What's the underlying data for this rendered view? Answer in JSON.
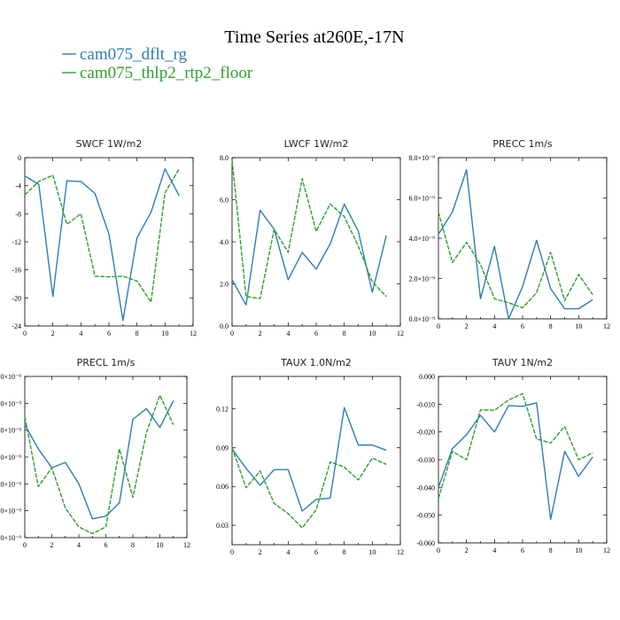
{
  "figure": {
    "title": "Time Series at260E,-17N",
    "legend": [
      {
        "label": "cam075_dflt_rg",
        "color": "#2e7db4",
        "dash": "solid"
      },
      {
        "label": "cam075_thlp2_rtp2_floor",
        "color": "#2ca02c",
        "dash": "dashed"
      }
    ]
  },
  "chart_data": [
    {
      "type": "line",
      "title": "SWCF   1W/m2",
      "x": [
        0,
        1,
        2,
        3,
        4,
        5,
        6,
        7,
        8,
        9,
        10,
        11
      ],
      "xlim": [
        0,
        12
      ],
      "xticks": [
        0,
        2,
        4,
        6,
        8,
        10,
        12
      ],
      "xtick_labels": [
        "0",
        "2",
        "4",
        "6",
        "8",
        "10",
        "12"
      ],
      "ylim": [
        -24,
        0
      ],
      "yticks": [
        -24,
        -20,
        -16,
        -12,
        -8,
        -4,
        0
      ],
      "ytick_labels": [
        "-24",
        "-20",
        "-16",
        "-12",
        "-8",
        "-4",
        "0"
      ],
      "series": [
        {
          "name": "cam075_dflt_rg",
          "values": [
            -2.6,
            -3.8,
            -19.8,
            -3.3,
            -3.4,
            -5.1,
            -10.9,
            -23.2,
            -11.4,
            -7.8,
            -1.6,
            -5.4
          ]
        },
        {
          "name": "cam075_thlp2_rtp2_floor",
          "values": [
            -5.3,
            -3.4,
            -2.5,
            -9.5,
            -8.0,
            -16.9,
            -17.0,
            -16.9,
            -17.6,
            -20.6,
            -5.0,
            -1.6
          ]
        }
      ]
    },
    {
      "type": "line",
      "title": "LWCF   1W/m2",
      "x": [
        0,
        1,
        2,
        3,
        4,
        5,
        6,
        7,
        8,
        9,
        10,
        11
      ],
      "xlim": [
        0,
        12
      ],
      "xticks": [
        0,
        2,
        4,
        6,
        8,
        10,
        12
      ],
      "xtick_labels": [
        "0",
        "2",
        "4",
        "6",
        "8",
        "10",
        "12"
      ],
      "ylim": [
        0,
        8
      ],
      "yticks": [
        0,
        2,
        4,
        6,
        8
      ],
      "ytick_labels": [
        "0.0",
        "2.0",
        "4.0",
        "6.0",
        "8.0"
      ],
      "series": [
        {
          "name": "cam075_dflt_rg",
          "values": [
            2.2,
            1.0,
            5.5,
            4.6,
            2.2,
            3.5,
            2.7,
            3.9,
            5.8,
            4.5,
            1.6,
            4.3
          ]
        },
        {
          "name": "cam075_thlp2_rtp2_floor",
          "values": [
            7.9,
            1.4,
            1.3,
            4.6,
            3.5,
            7.0,
            4.5,
            5.8,
            5.2,
            3.8,
            2.1,
            1.4
          ]
        }
      ]
    },
    {
      "type": "line",
      "title": "PRECC   1m/s",
      "x": [
        0,
        1,
        2,
        3,
        4,
        5,
        6,
        7,
        8,
        9,
        10,
        11
      ],
      "xlim": [
        0,
        12
      ],
      "xticks": [
        0,
        2,
        4,
        6,
        8,
        10,
        12
      ],
      "xtick_labels": [
        "0",
        "2",
        "4",
        "6",
        "8",
        "10",
        "12"
      ],
      "ylim": [
        0,
        8e-09
      ],
      "yticks": [
        0,
        2e-09,
        4e-09,
        6e-09,
        8e-09
      ],
      "ytick_labels": [
        "0.0×10⁻⁹",
        "2.0×10⁻⁹",
        "4.0×10⁻⁹",
        "6.0×10⁻⁹",
        "8.0×10⁻⁹"
      ],
      "series": [
        {
          "name": "cam075_dflt_rg",
          "values": [
            4.2e-09,
            5.3e-09,
            7.4e-09,
            1e-09,
            3.6e-09,
            0.0,
            1.6e-09,
            3.9e-09,
            1.5e-09,
            5e-10,
            5e-10,
            9.5e-10
          ]
        },
        {
          "name": "cam075_thlp2_rtp2_floor",
          "values": [
            5.3e-09,
            2.8e-09,
            3.8e-09,
            2.7e-09,
            1e-09,
            8e-10,
            5.5e-10,
            1.3e-09,
            3.3e-09,
            9e-10,
            2.2e-09,
            1.2e-09
          ]
        }
      ]
    },
    {
      "type": "line",
      "title": "PRECL   1m/s",
      "x": [
        0,
        1,
        2,
        3,
        4,
        5,
        6,
        7,
        8,
        9,
        10,
        11
      ],
      "xlim": [
        0,
        12
      ],
      "xticks": [
        0,
        2,
        4,
        6,
        8,
        10,
        12
      ],
      "xtick_labels": [
        "0",
        "2",
        "4",
        "6",
        "8",
        "10",
        "12"
      ],
      "ylim": [
        0,
        6
      ],
      "yticks": [
        0,
        1,
        2,
        3,
        4,
        5,
        6
      ],
      "ytick_labels": [
        "0×10⁻⁹",
        "0×10⁻⁹",
        "0×10⁻⁹",
        "0×10⁻⁹",
        "0×10⁻⁹",
        "0×10⁻⁹",
        "0×10⁻⁹"
      ],
      "series": [
        {
          "name": "cam075_dflt_rg",
          "values": [
            4.2,
            3.3,
            2.6,
            2.8,
            2.0,
            0.7,
            0.8,
            1.3,
            4.4,
            4.8,
            4.1,
            5.1
          ]
        },
        {
          "name": "cam075_thlp2_rtp2_floor",
          "values": [
            4.5,
            1.9,
            2.6,
            1.1,
            0.4,
            0.15,
            0.4,
            3.3,
            1.5,
            3.9,
            5.3,
            4.2
          ]
        }
      ]
    },
    {
      "type": "line",
      "title": "TAUX   1.0N/m2",
      "x": [
        0,
        1,
        2,
        3,
        4,
        5,
        6,
        7,
        8,
        9,
        10,
        11
      ],
      "xlim": [
        0,
        12
      ],
      "xticks": [
        0,
        2,
        4,
        6,
        8,
        10,
        12
      ],
      "xtick_labels": [
        "0",
        "2",
        "4",
        "6",
        "8",
        "10",
        "12"
      ],
      "ylim": [
        0.015,
        0.145
      ],
      "yticks": [
        0.03,
        0.06,
        0.09,
        0.12
      ],
      "ytick_labels": [
        "0.03",
        "0.06",
        "0.09",
        "0.12"
      ],
      "series": [
        {
          "name": "cam075_dflt_rg",
          "values": [
            0.089,
            0.074,
            0.061,
            0.073,
            0.073,
            0.041,
            0.05,
            0.051,
            0.121,
            0.092,
            0.092,
            0.088
          ]
        },
        {
          "name": "cam075_thlp2_rtp2_floor",
          "values": [
            0.09,
            0.059,
            0.072,
            0.047,
            0.039,
            0.028,
            0.042,
            0.079,
            0.075,
            0.065,
            0.082,
            0.077
          ]
        }
      ]
    },
    {
      "type": "line",
      "title": "TAUY   1N/m2",
      "x": [
        0,
        1,
        2,
        3,
        4,
        5,
        6,
        7,
        8,
        9,
        10,
        11
      ],
      "xlim": [
        0,
        12
      ],
      "xticks": [
        0,
        2,
        4,
        6,
        8,
        10,
        12
      ],
      "xtick_labels": [
        "0",
        "2",
        "4",
        "6",
        "8",
        "10",
        "12"
      ],
      "ylim": [
        -0.06,
        0.0
      ],
      "yticks": [
        -0.06,
        -0.05,
        -0.04,
        -0.03,
        -0.02,
        -0.01,
        0.0
      ],
      "ytick_labels": [
        "-0.060",
        "-0.050",
        "-0.040",
        "-0.030",
        "-0.020",
        "-0.010",
        "0.000"
      ],
      "series": [
        {
          "name": "cam075_dflt_rg",
          "values": [
            -0.04,
            -0.026,
            -0.021,
            -0.014,
            -0.02,
            -0.0105,
            -0.0108,
            -0.0095,
            -0.0515,
            -0.027,
            -0.036,
            -0.029
          ]
        },
        {
          "name": "cam075_thlp2_rtp2_floor",
          "values": [
            -0.044,
            -0.027,
            -0.03,
            -0.012,
            -0.0122,
            -0.0085,
            -0.0062,
            -0.0225,
            -0.024,
            -0.018,
            -0.03,
            -0.0275
          ]
        }
      ]
    }
  ]
}
